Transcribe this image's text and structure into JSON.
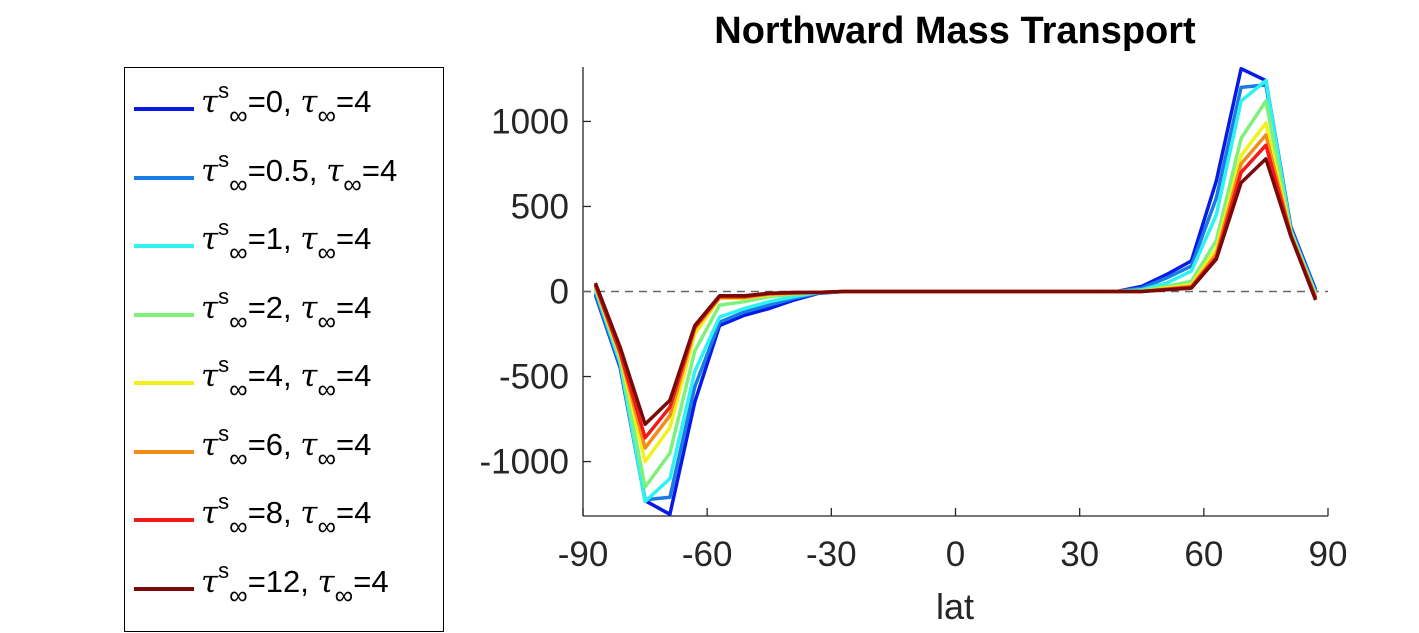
{
  "chart_data": {
    "type": "line",
    "title": "Northward Mass Transport",
    "xlabel": "lat",
    "ylabel": "",
    "xlim": [
      -90,
      90
    ],
    "ylim": [
      -1320,
      1320
    ],
    "xticks": [
      -90,
      -60,
      -30,
      0,
      30,
      60,
      90
    ],
    "yticks": [
      -1000,
      -500,
      0,
      500,
      1000
    ],
    "zero_line": "dashed",
    "legend_position": "outside-left",
    "x": [
      -87,
      -81,
      -75,
      -69,
      -63,
      -57,
      -51,
      -45,
      -39,
      -33,
      -27,
      -21,
      -15,
      -9,
      -3,
      3,
      9,
      15,
      21,
      27,
      33,
      39,
      45,
      51,
      57,
      63,
      69,
      75,
      81,
      87
    ],
    "series": [
      {
        "name": "τ∞s=0, τ∞=4",
        "color": "#0a1ae6",
        "values": [
          -20,
          -450,
          -1230,
          -1310,
          -650,
          -200,
          -140,
          -100,
          -50,
          -10,
          0,
          0,
          0,
          0,
          0,
          0,
          0,
          0,
          0,
          0,
          0,
          0,
          30,
          100,
          180,
          650,
          1310,
          1240,
          380,
          10
        ]
      },
      {
        "name": "τ∞s=0.5, τ∞=4",
        "color": "#1a7ae6",
        "values": [
          -10,
          -440,
          -1225,
          -1210,
          -560,
          -180,
          -120,
          -80,
          -40,
          -8,
          0,
          0,
          0,
          0,
          0,
          0,
          0,
          0,
          0,
          0,
          0,
          0,
          20,
          80,
          150,
          550,
          1200,
          1215,
          370,
          0
        ]
      },
      {
        "name": "τ∞s=1, τ∞=4",
        "color": "#2ef2f2",
        "values": [
          10,
          -420,
          -1235,
          -1100,
          -470,
          -150,
          -100,
          -60,
          -30,
          -5,
          0,
          0,
          0,
          0,
          0,
          0,
          0,
          0,
          0,
          0,
          0,
          0,
          10,
          50,
          120,
          450,
          1120,
          1240,
          360,
          -10
        ]
      },
      {
        "name": "τ∞s=2, τ∞=4",
        "color": "#7cf27c",
        "values": [
          20,
          -400,
          -1150,
          -950,
          -350,
          -80,
          -60,
          -30,
          -15,
          -5,
          0,
          0,
          0,
          0,
          0,
          0,
          0,
          0,
          0,
          0,
          0,
          0,
          5,
          30,
          60,
          300,
          900,
          1120,
          350,
          -20
        ]
      },
      {
        "name": "τ∞s=4, τ∞=4",
        "color": "#f2f21a",
        "values": [
          30,
          -380,
          -1000,
          -800,
          -250,
          -40,
          -40,
          -20,
          -10,
          -5,
          0,
          0,
          0,
          0,
          0,
          0,
          0,
          0,
          0,
          0,
          0,
          0,
          0,
          20,
          40,
          250,
          800,
          990,
          340,
          -30
        ]
      },
      {
        "name": "τ∞s=6, τ∞=4",
        "color": "#f28c1a",
        "values": [
          35,
          -370,
          -920,
          -730,
          -220,
          -35,
          -35,
          -15,
          -10,
          -5,
          0,
          0,
          0,
          0,
          0,
          0,
          0,
          0,
          0,
          0,
          0,
          0,
          0,
          15,
          30,
          220,
          750,
          920,
          335,
          -35
        ]
      },
      {
        "name": "τ∞s=8, τ∞=4",
        "color": "#f21a1a",
        "values": [
          40,
          -360,
          -860,
          -680,
          -210,
          -30,
          -30,
          -12,
          -8,
          -5,
          0,
          0,
          0,
          0,
          0,
          0,
          0,
          0,
          0,
          0,
          0,
          0,
          0,
          12,
          25,
          200,
          700,
          860,
          330,
          -40
        ]
      },
      {
        "name": "τ∞s=12, τ∞=4",
        "color": "#7a0a0a",
        "values": [
          50,
          -330,
          -780,
          -640,
          -200,
          -25,
          -25,
          -10,
          -5,
          -5,
          0,
          0,
          0,
          0,
          0,
          0,
          0,
          0,
          0,
          0,
          0,
          0,
          0,
          10,
          20,
          190,
          640,
          780,
          325,
          -50
        ]
      }
    ]
  },
  "legend": [
    {
      "s": "0",
      "t": "4"
    },
    {
      "s": "0.5",
      "t": "4"
    },
    {
      "s": "1",
      "t": "4"
    },
    {
      "s": "2",
      "t": "4"
    },
    {
      "s": "4",
      "t": "4"
    },
    {
      "s": "6",
      "t": "4"
    },
    {
      "s": "8",
      "t": "4"
    },
    {
      "s": "12",
      "t": "4"
    }
  ],
  "symbols": {
    "tau": "τ",
    "sup": "s",
    "sub": "∞"
  }
}
